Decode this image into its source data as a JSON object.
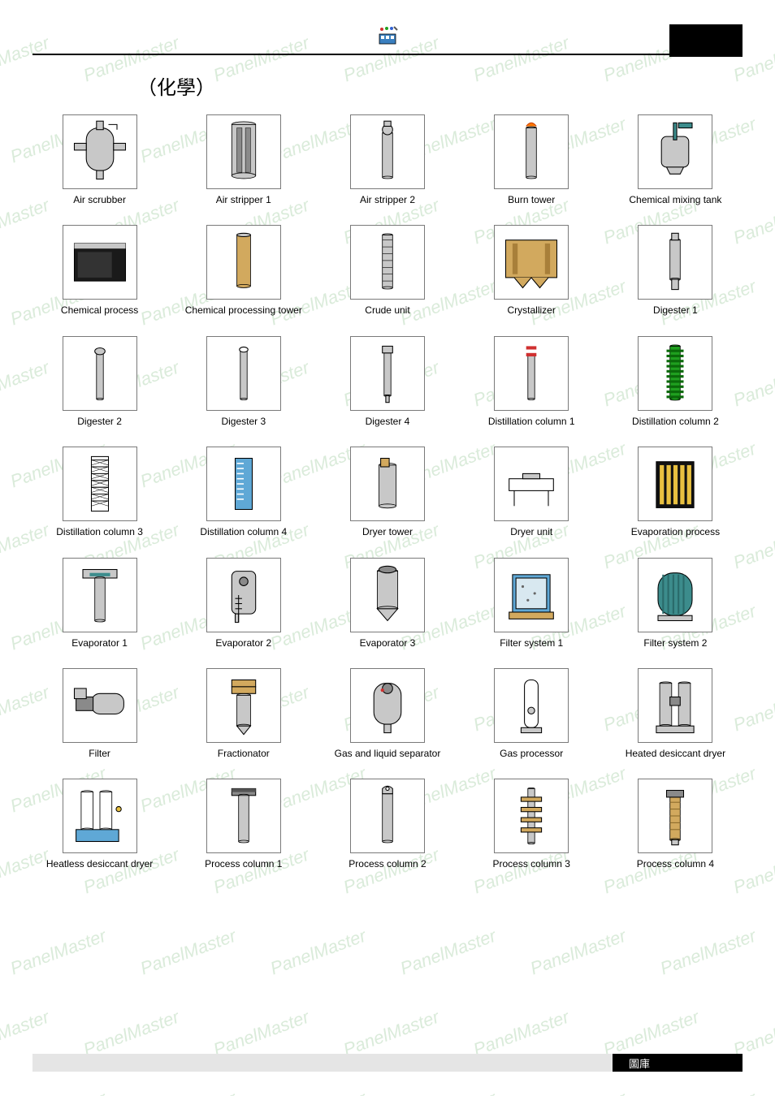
{
  "watermark_text": "PanelMaster",
  "title": "（化學）",
  "footer_label": "圖庫",
  "grid": {
    "columns": 5,
    "thumb_border": "#7a7a7a",
    "items": [
      {
        "label": "Air scrubber",
        "shape": "scrubber"
      },
      {
        "label": "Air stripper 1",
        "shape": "stripper1"
      },
      {
        "label": "Air stripper 2",
        "shape": "stripper2"
      },
      {
        "label": "Burn tower",
        "shape": "burntower"
      },
      {
        "label": "Chemical mixing tank",
        "shape": "mixtank"
      },
      {
        "label": "Chemical process",
        "shape": "chemprocess"
      },
      {
        "label": "Chemical processing tower",
        "shape": "chemtower"
      },
      {
        "label": "Crude unit",
        "shape": "crudeunit"
      },
      {
        "label": "Crystallizer",
        "shape": "crystallizer"
      },
      {
        "label": "Digester 1",
        "shape": "digester1"
      },
      {
        "label": "Digester 2",
        "shape": "digester2"
      },
      {
        "label": "Digester 3",
        "shape": "digester3"
      },
      {
        "label": "Digester 4",
        "shape": "digester4"
      },
      {
        "label": "Distillation column 1",
        "shape": "distcol1"
      },
      {
        "label": "Distillation column 2",
        "shape": "distcol2"
      },
      {
        "label": "Distillation column 3",
        "shape": "distcol3"
      },
      {
        "label": "Distillation column 4",
        "shape": "distcol4"
      },
      {
        "label": "Dryer tower",
        "shape": "dryertower"
      },
      {
        "label": "Dryer unit",
        "shape": "dryerunit"
      },
      {
        "label": "Evaporation process",
        "shape": "evapprocess"
      },
      {
        "label": "Evaporator 1",
        "shape": "evap1"
      },
      {
        "label": "Evaporator 2",
        "shape": "evap2"
      },
      {
        "label": "Evaporator 3",
        "shape": "evap3"
      },
      {
        "label": "Filter system 1",
        "shape": "filtersys1"
      },
      {
        "label": "Filter system 2",
        "shape": "filtersys2"
      },
      {
        "label": "Filter",
        "shape": "filter"
      },
      {
        "label": "Fractionator",
        "shape": "fractionator"
      },
      {
        "label": "Gas and liquid separator",
        "shape": "gasliquid"
      },
      {
        "label": "Gas processor",
        "shape": "gasproc"
      },
      {
        "label": "Heated desiccant dryer",
        "shape": "heateddryer"
      },
      {
        "label": "Heatless desiccant dryer",
        "shape": "heatlessdryer"
      },
      {
        "label": "Process column 1",
        "shape": "proccol1"
      },
      {
        "label": "Process column 2",
        "shape": "proccol2"
      },
      {
        "label": "Process column 3",
        "shape": "proccol3"
      },
      {
        "label": "Process column 4",
        "shape": "proccol4"
      }
    ]
  },
  "colors": {
    "steel": "#c8c8c8",
    "steel_dark": "#8a8a8a",
    "tan": "#d2a95e",
    "tan_dark": "#a87f3a",
    "green": "#1fa01f",
    "blue": "#5fa8d6",
    "yellow": "#e8c040",
    "red": "#d03030",
    "black": "#1a1a1a",
    "white": "#ffffff",
    "teal": "#3c8c8c"
  }
}
